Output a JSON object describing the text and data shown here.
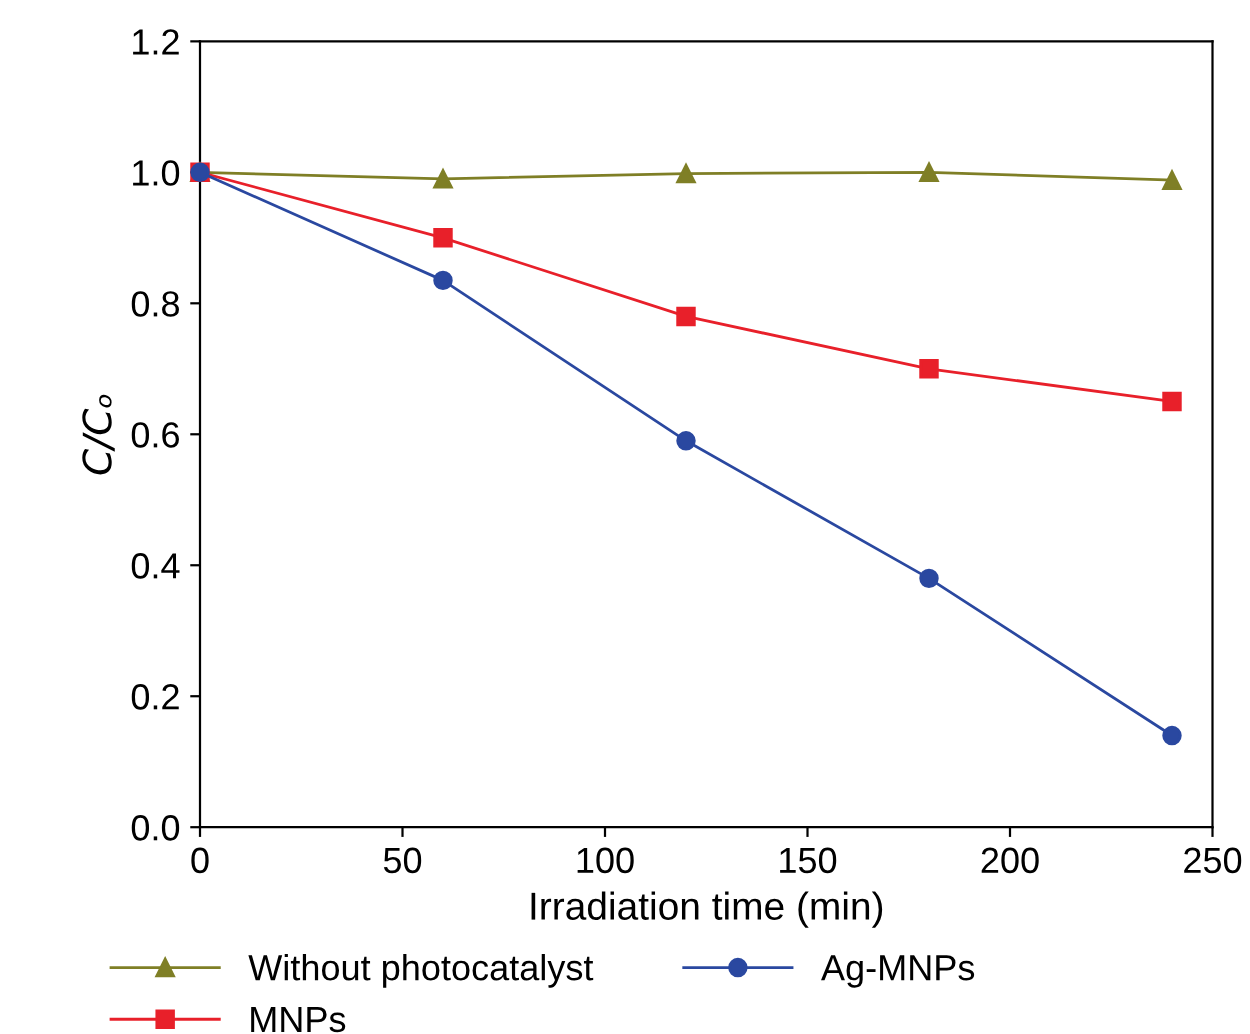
{
  "chart_data": {
    "type": "line",
    "xlabel": "Irradiation time (min)",
    "ylabel": "C/Cₒ",
    "x": [
      0,
      60,
      120,
      180,
      240
    ],
    "series": [
      {
        "name": "Without photocatalyst",
        "color": "#7f7f26",
        "marker": "triangle",
        "values": [
          1.0,
          0.99,
          0.998,
          1.0,
          0.988
        ]
      },
      {
        "name": "MNPs",
        "color": "#e8202a",
        "marker": "square",
        "values": [
          1.0,
          0.9,
          0.78,
          0.7,
          0.65
        ]
      },
      {
        "name": "Ag-MNPs",
        "color": "#2a48a0",
        "marker": "circle",
        "values": [
          1.0,
          0.835,
          0.59,
          0.38,
          0.14
        ]
      }
    ],
    "xlim": [
      0,
      250
    ],
    "xticks": [
      0,
      50,
      100,
      150,
      200,
      250
    ],
    "ylim": [
      0,
      1.2
    ],
    "yticks": [
      {
        "value": 0,
        "label": "0.0"
      },
      {
        "value": 0.2,
        "label": "0.2"
      },
      {
        "value": 0.4,
        "label": "0.4"
      },
      {
        "value": 0.6,
        "label": "0.6"
      },
      {
        "value": 0.8,
        "label": "0.8"
      },
      {
        "value": 1.0,
        "label": "1.0"
      },
      {
        "value": 1.2,
        "label": "1.2"
      }
    ],
    "grid": false,
    "legend": "bottom",
    "line_style": "solid"
  }
}
